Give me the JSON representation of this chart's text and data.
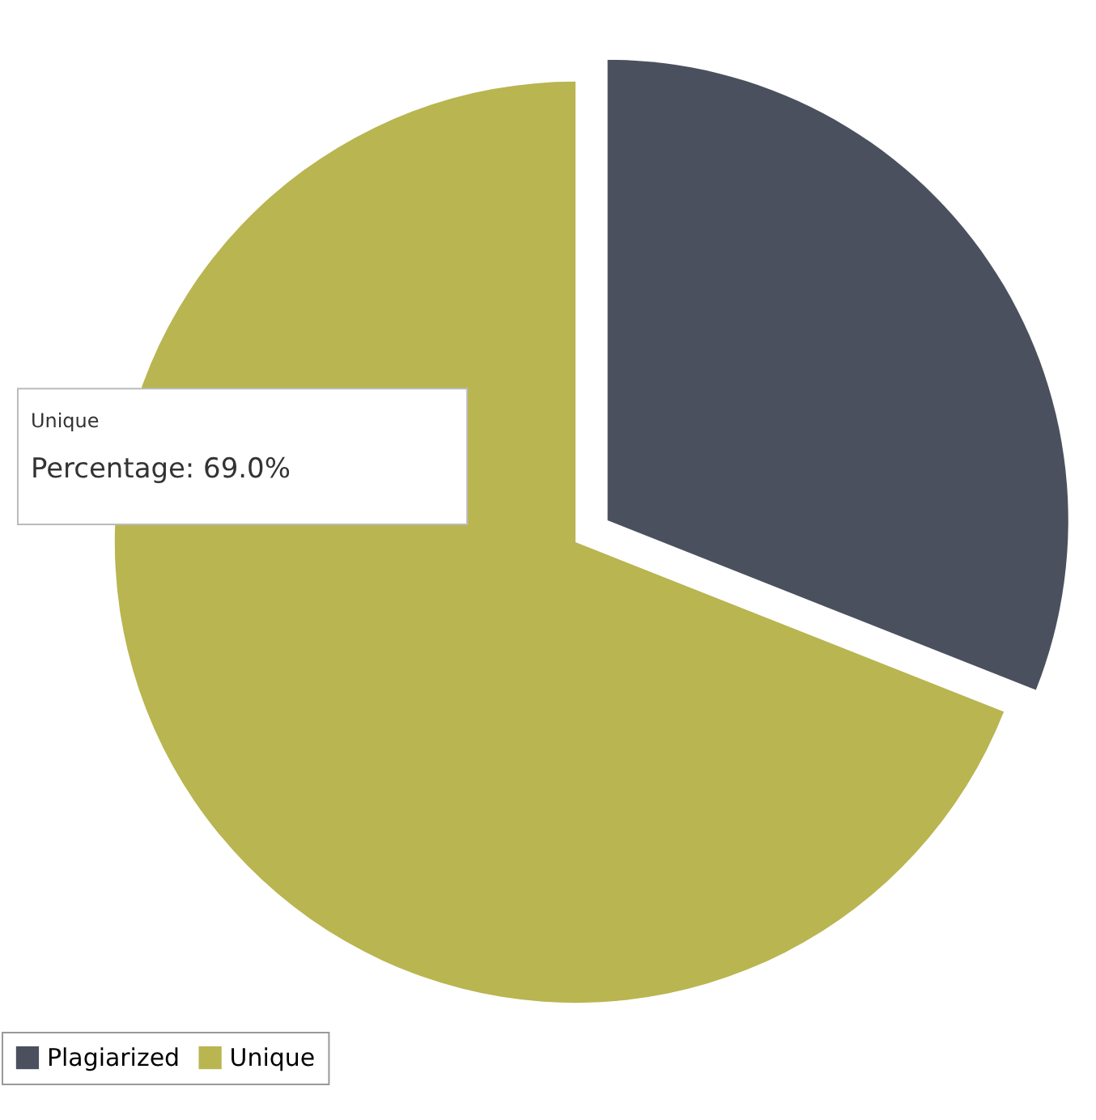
{
  "chart_data": {
    "type": "pie",
    "categories": [
      "Plagiarized",
      "Unique"
    ],
    "values": [
      31,
      69
    ],
    "colors": [
      "#4b505e",
      "#b9b550"
    ],
    "legend": "bottom",
    "annotations": [
      "Unique",
      "Percentage: 69.0%"
    ]
  }
}
